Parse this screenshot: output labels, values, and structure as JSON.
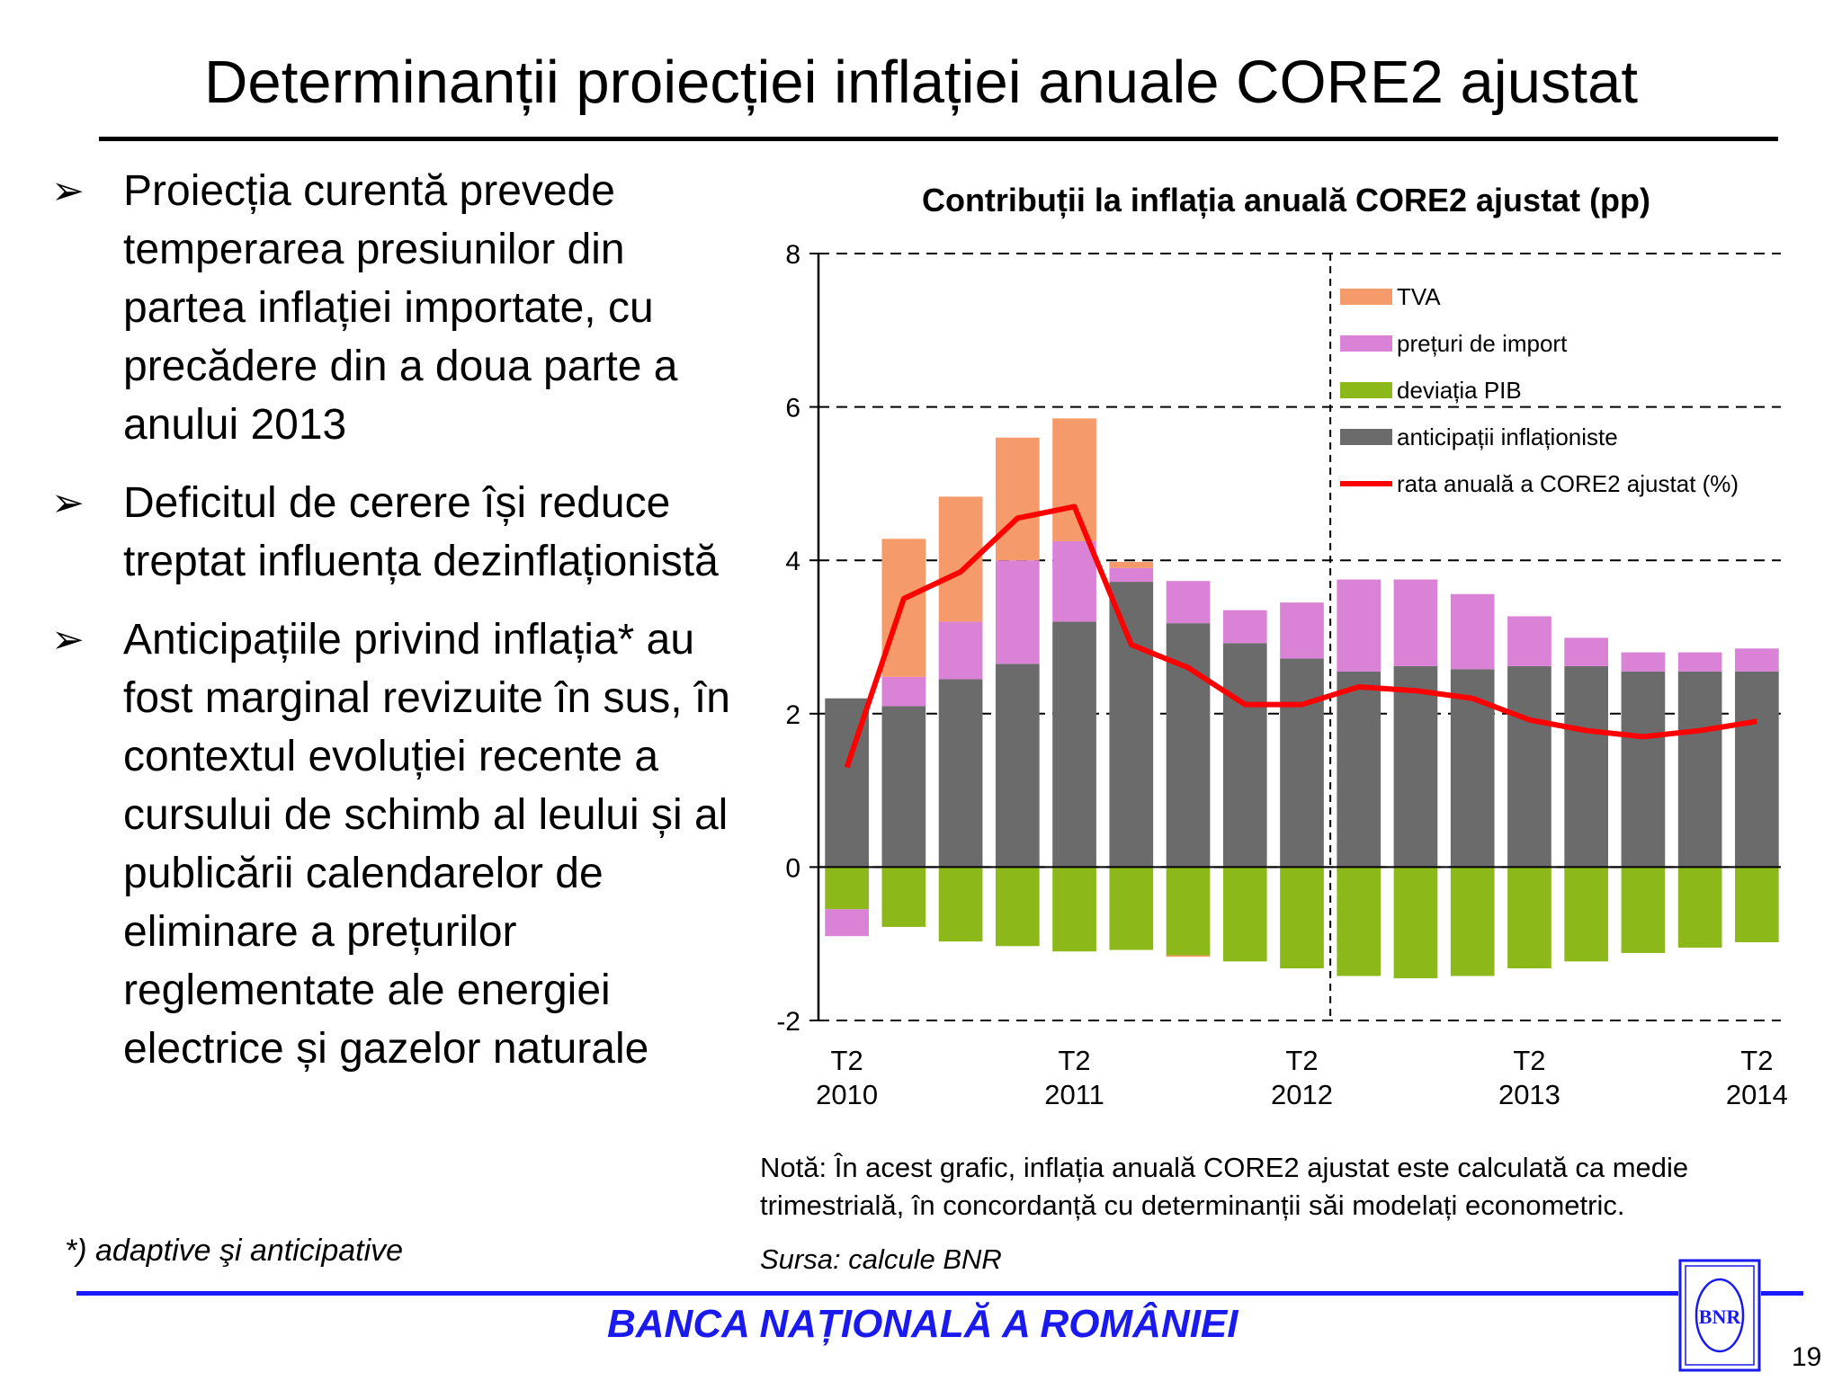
{
  "slide": {
    "title": "Determinanții proiecției inflației anuale CORE2 ajustat",
    "bullets": [
      "Proiecția curentă prevede temperarea presiunilor din partea inflației importate, cu precădere din a doua parte a anului 2013",
      "Deficitul de cerere își reduce treptat influența dezinflaționistă",
      "Anticipațiile privind inflația* au fost marginal revizuite în sus, în contextul evoluției recente a cursului de schimb al leului și al publicării calendarelor de eliminare a prețurilor reglementate ale energiei electrice și gazelor naturale"
    ],
    "bullet_marker": "➢",
    "footnote": "*) adaptive şi anticipative",
    "note_line1": "Notă: În acest grafic, inflația anuală CORE2 ajustat este calculată ca medie",
    "note_line2": "trimestrială, în concordanță cu determinanții  săi modelați econometric.",
    "source": "Sursa: calcule BNR",
    "bank_name": "BANCA NAȚIONALĂ A ROMÂNIEI",
    "page_number": "19",
    "logo_text": "BNR"
  },
  "colors": {
    "anticipatii": "#6b6b6b",
    "deviatia_pib": "#8db81a",
    "preturi_import": "#d982d6",
    "tva": "#f59a6a",
    "rata": "#ff0000",
    "brand_blue": "#1a1aee"
  },
  "chart_data": {
    "type": "bar",
    "stacked": true,
    "title": "Contribuții la inflația anuală CORE2 ajustat (pp)",
    "ylim": [
      -2,
      8
    ],
    "yticks": [
      "-2",
      "0",
      "2",
      "4",
      "6",
      "8"
    ],
    "xtick_labels": [
      {
        "q": "T2",
        "y": "2010"
      },
      {
        "q": "T2",
        "y": "2011"
      },
      {
        "q": "T2",
        "y": "2012"
      },
      {
        "q": "T2",
        "y": "2013"
      },
      {
        "q": "T2",
        "y": "2014"
      }
    ],
    "categories": [
      "T2 2010",
      "T3 2010",
      "T4 2010",
      "T1 2011",
      "T2 2011",
      "T3 2011",
      "T4 2011",
      "T1 2012",
      "T2 2012",
      "T3 2012",
      "T4 2012",
      "T1 2013",
      "T2 2013",
      "T3 2013",
      "T4 2013",
      "T1 2014",
      "T2 2014"
    ],
    "projection_start": "T3 2012",
    "grid": "dashed horizontal",
    "legend_position": "top-right",
    "series": [
      {
        "name": "anticipații inflaționiste",
        "key": "anticipatii",
        "values": [
          2.2,
          2.1,
          2.45,
          2.65,
          3.2,
          3.72,
          3.18,
          2.92,
          2.72,
          2.55,
          2.62,
          2.58,
          2.62,
          2.62,
          2.55,
          2.55,
          2.55
        ]
      },
      {
        "name": "deviația PIB",
        "key": "deviatia_pib",
        "values": [
          -0.55,
          -0.78,
          -0.97,
          -1.03,
          -1.1,
          -1.08,
          -1.15,
          -1.23,
          -1.32,
          -1.42,
          -1.45,
          -1.42,
          -1.32,
          -1.23,
          -1.12,
          -1.05,
          -0.98
        ]
      },
      {
        "name": "prețuri de import",
        "key": "preturi_import",
        "values": [
          -0.35,
          0.38,
          0.75,
          1.35,
          1.05,
          0.18,
          0.55,
          0.43,
          0.73,
          1.2,
          1.13,
          0.98,
          0.65,
          0.37,
          0.25,
          0.25,
          0.3
        ]
      },
      {
        "name": "TVA",
        "key": "tva",
        "values": [
          0,
          1.8,
          1.63,
          1.6,
          1.6,
          0.08,
          -0.02,
          0,
          0,
          0,
          0,
          0,
          0,
          0,
          0,
          0,
          0
        ]
      }
    ],
    "line": {
      "name": "rata anuală a CORE2 ajustat (%)",
      "key": "rata",
      "values": [
        1.3,
        3.5,
        3.85,
        4.55,
        4.7,
        2.9,
        2.6,
        2.12,
        2.12,
        2.35,
        2.3,
        2.2,
        1.92,
        1.78,
        1.7,
        1.78,
        1.9
      ]
    },
    "legend_order": [
      "tva",
      "preturi_import",
      "deviatia_pib",
      "anticipatii",
      "rata"
    ]
  }
}
